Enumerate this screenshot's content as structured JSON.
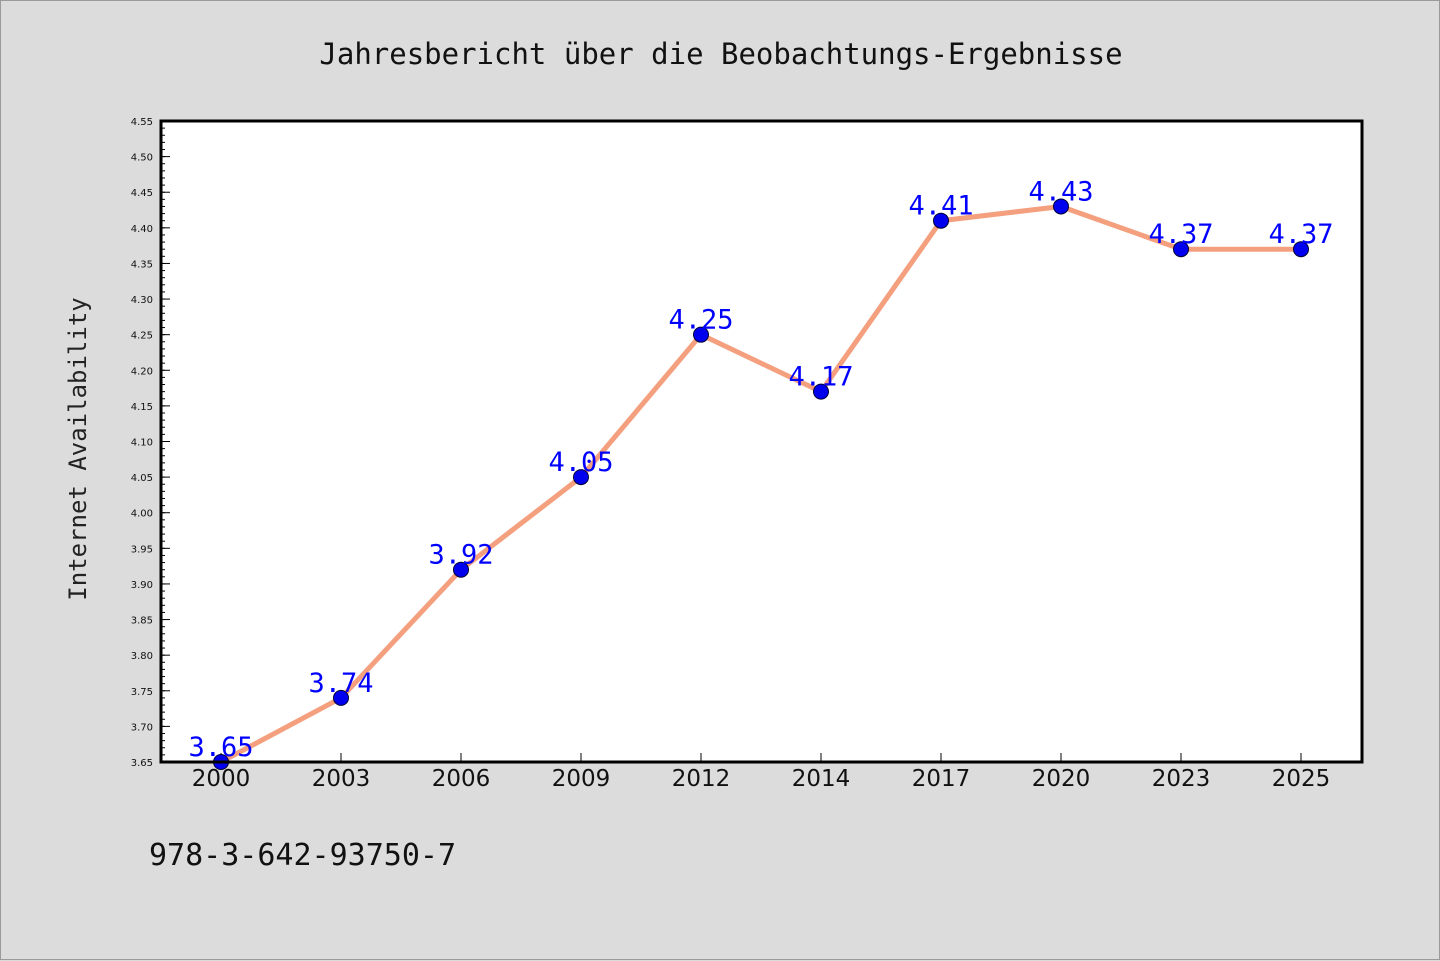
{
  "chart_data": {
    "type": "line",
    "title": "Jahresbericht über die Beobachtungs-Ergebnisse",
    "ylabel": "Internet Availability",
    "xlabel": "",
    "categories": [
      "2000",
      "2003",
      "2006",
      "2009",
      "2012",
      "2014",
      "2017",
      "2020",
      "2023",
      "2025"
    ],
    "values": [
      3.65,
      3.74,
      3.92,
      4.05,
      4.25,
      4.17,
      4.41,
      4.43,
      4.37,
      4.37
    ],
    "data_labels": [
      "3.65",
      "3.74",
      "3.92",
      "4.05",
      "4.25",
      "4.17",
      "4.41",
      "4.43",
      "4.37",
      "4.37"
    ],
    "ylim": [
      3.65,
      4.55
    ],
    "yticks": [
      "3.65",
      "3.70",
      "3.75",
      "3.80",
      "3.85",
      "3.90",
      "3.95",
      "4.00",
      "4.05",
      "4.10",
      "4.15",
      "4.20",
      "4.25",
      "4.30",
      "4.35",
      "4.40",
      "4.45",
      "4.50",
      "4.55"
    ],
    "grid": false,
    "legend": "none",
    "colors": {
      "line": "#f4a07f",
      "marker": "#0000ee",
      "marker_edge": "#000033",
      "label": "#0000ff",
      "background": "#dcdcdc",
      "plot_background": "#ffffff"
    }
  },
  "footer": {
    "isbn": "978-3-642-93750-7"
  }
}
